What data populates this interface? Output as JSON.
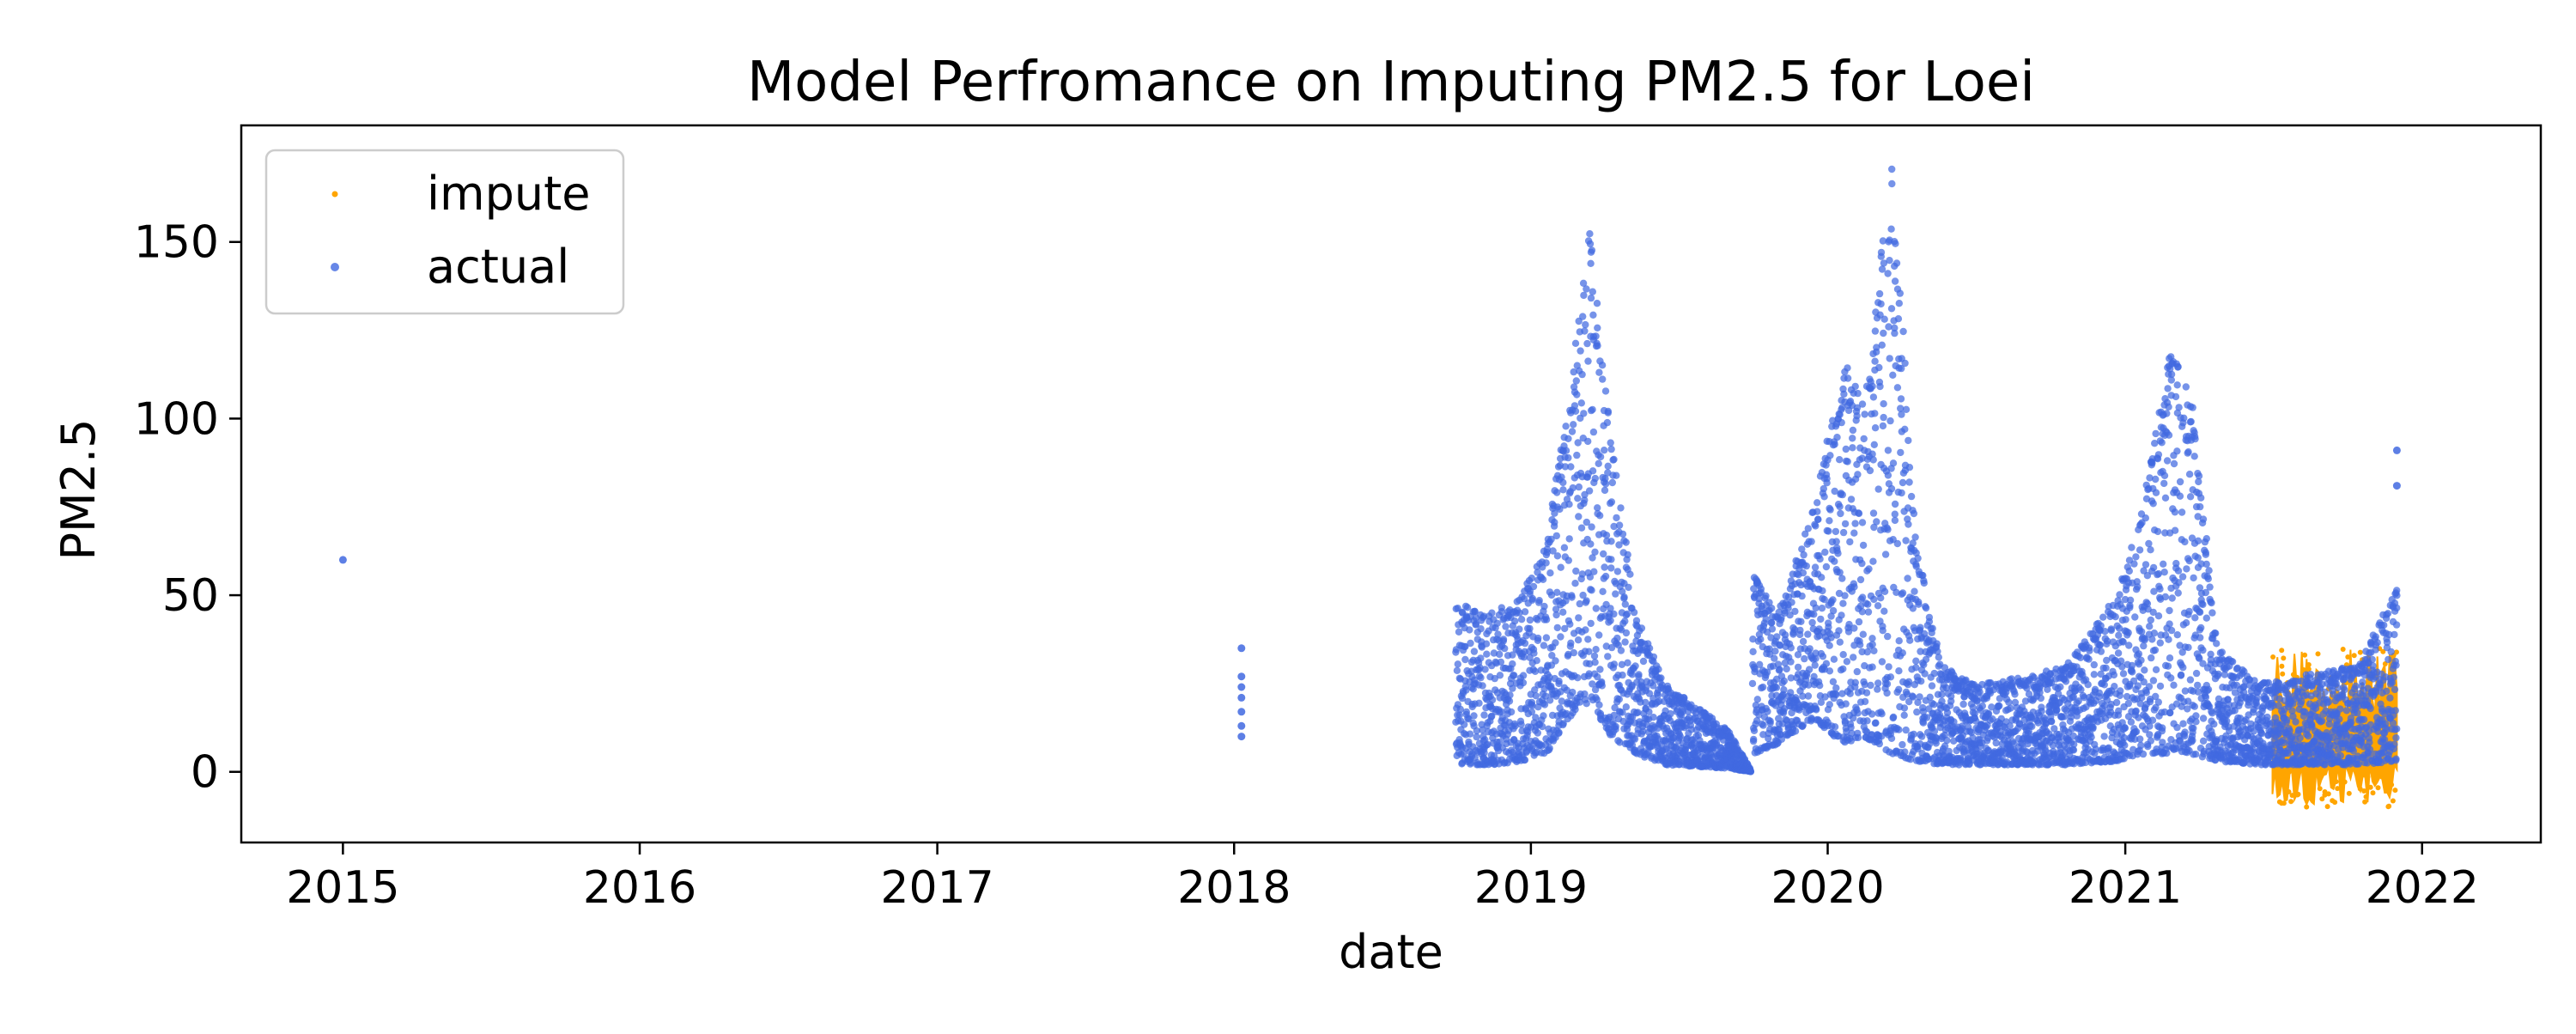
{
  "chart_data": {
    "type": "scatter",
    "title": "Model Perfromance on Imputing PM2.5 for Loei",
    "xlabel": "date",
    "ylabel": "PM2.5",
    "xlim": [
      "2014-08-29",
      "2022-05-27"
    ],
    "ylim": [
      -20,
      183
    ],
    "x_ticks": [
      "2015",
      "2016",
      "2017",
      "2018",
      "2019",
      "2020",
      "2021",
      "2022"
    ],
    "y_ticks": [
      "0",
      "50",
      "100",
      "150"
    ],
    "grid": false,
    "legend_position": "top-left",
    "colors": {
      "impute": "#FFA500",
      "actual": "#4169E1"
    },
    "series": [
      {
        "name": "impute",
        "marker": "point",
        "band_start": "2021-07-01",
        "band_end": "2021-12-01",
        "band_low_min": -10,
        "band_high_max": 35,
        "note_points": []
      },
      {
        "name": "actual",
        "marker": "dot",
        "isolated_points": [
          {
            "x": "2015-01-01",
            "y": 60
          },
          {
            "x": "2018-01-10",
            "y": 35
          },
          {
            "x": "2018-01-10",
            "y": 27
          },
          {
            "x": "2018-01-10",
            "y": 24
          },
          {
            "x": "2018-01-10",
            "y": 21
          },
          {
            "x": "2018-01-10",
            "y": 17
          },
          {
            "x": "2018-01-10",
            "y": 13
          },
          {
            "x": "2018-01-10",
            "y": 10
          },
          {
            "x": "2021-12-01",
            "y": 91
          },
          {
            "x": "2021-12-01",
            "y": 81
          }
        ],
        "envelope": [
          {
            "x": "2018-10-01",
            "low": 2,
            "high": 48
          },
          {
            "x": "2018-11-15",
            "low": 2,
            "high": 45
          },
          {
            "x": "2018-12-20",
            "low": 3,
            "high": 50
          },
          {
            "x": "2019-01-20",
            "low": 5,
            "high": 65
          },
          {
            "x": "2019-02-15",
            "low": 15,
            "high": 105
          },
          {
            "x": "2019-03-15",
            "low": 20,
            "high": 156
          },
          {
            "x": "2019-04-10",
            "low": 10,
            "high": 95
          },
          {
            "x": "2019-05-10",
            "low": 5,
            "high": 45
          },
          {
            "x": "2019-06-15",
            "low": 2,
            "high": 25
          },
          {
            "x": "2019-08-31",
            "low": 1,
            "high": 12
          },
          {
            "x": "2019-09-30",
            "low": 0,
            "high": 0
          },
          {
            "x": "2019-10-01",
            "low": 5,
            "high": 56
          },
          {
            "x": "2019-11-01",
            "low": 8,
            "high": 45
          },
          {
            "x": "2019-12-15",
            "low": 15,
            "high": 75
          },
          {
            "x": "2020-01-20",
            "low": 8,
            "high": 117
          },
          {
            "x": "2020-02-15",
            "low": 10,
            "high": 105
          },
          {
            "x": "2020-03-20",
            "low": 5,
            "high": 174
          },
          {
            "x": "2020-04-20",
            "low": 3,
            "high": 65
          },
          {
            "x": "2020-05-20",
            "low": 2,
            "high": 30
          },
          {
            "x": "2020-07-01",
            "low": 2,
            "high": 25
          },
          {
            "x": "2020-09-01",
            "low": 2,
            "high": 27
          },
          {
            "x": "2020-10-20",
            "low": 2,
            "high": 30
          },
          {
            "x": "2020-12-20",
            "low": 3,
            "high": 50
          },
          {
            "x": "2021-01-20",
            "low": 5,
            "high": 72
          },
          {
            "x": "2021-02-25",
            "low": 5,
            "high": 122
          },
          {
            "x": "2021-03-25",
            "low": 5,
            "high": 104
          },
          {
            "x": "2021-04-25",
            "low": 3,
            "high": 35
          },
          {
            "x": "2021-06-15",
            "low": 2,
            "high": 25
          },
          {
            "x": "2021-08-15",
            "low": 2,
            "high": 28
          },
          {
            "x": "2021-10-15",
            "low": 2,
            "high": 30
          },
          {
            "x": "2021-12-01",
            "low": 3,
            "high": 53
          }
        ]
      }
    ]
  }
}
